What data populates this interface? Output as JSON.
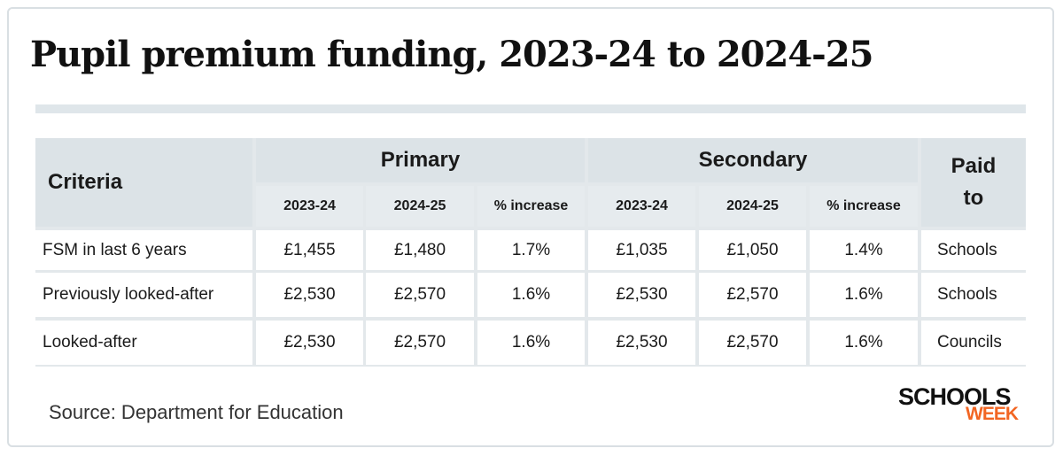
{
  "header": {
    "title": "Pupil premium funding, 2023-24 to 2024-25"
  },
  "table": {
    "criteria_header": "Criteria",
    "groups": [
      "Primary",
      "Secondary"
    ],
    "paid_to_header": "Paid to",
    "subheaders": [
      "2023-24",
      "2024-25",
      "% increase",
      "2023-24",
      "2024-25",
      "% increase"
    ],
    "rows": [
      [
        "FSM in last 6 years",
        "£1,455",
        "£1,480",
        "1.7%",
        "£1,035",
        "£1,050",
        "1.4%",
        "Schools"
      ],
      [
        "Previously looked-after",
        "£2,530",
        "£2,570",
        "1.6%",
        "£2,530",
        "£2,570",
        "1.6%",
        "Schools"
      ],
      [
        "Looked-after",
        "£2,530",
        "£2,570",
        "1.6%",
        "£2,530",
        "£2,570",
        "1.6%",
        "Councils"
      ]
    ]
  },
  "footer": {
    "source": "Source: Department for Education",
    "logo_top": "SCHOOLS",
    "logo_bottom": "WEEK"
  }
}
